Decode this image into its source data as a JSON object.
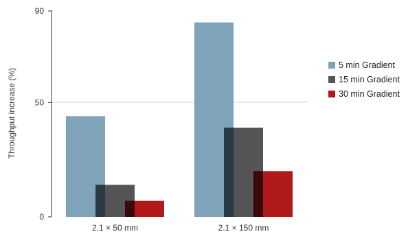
{
  "chart_data": {
    "type": "bar",
    "title": "",
    "xlabel": "",
    "ylabel": "Throughput increase (%)",
    "ylim": [
      0,
      90
    ],
    "yticks": [
      0,
      50,
      90
    ],
    "gridlines": [
      50
    ],
    "categories": [
      "2.1 × 50 mm",
      "2.1 × 150 mm"
    ],
    "series": [
      {
        "name": "5 min Gradient",
        "color": "#7fa3b8",
        "values": [
          44,
          85
        ]
      },
      {
        "name": "15 min Gradient",
        "color": "#555558",
        "values": [
          14,
          39
        ]
      },
      {
        "name": "30 min Gradient",
        "color": "#b11a1a",
        "values": [
          7,
          20
        ]
      }
    ],
    "legend_position": "right"
  }
}
